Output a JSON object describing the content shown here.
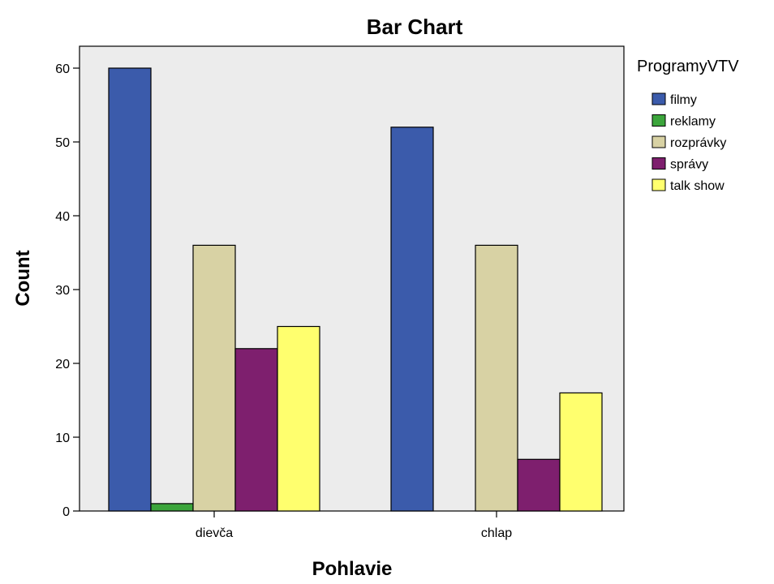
{
  "chart_data": {
    "type": "bar",
    "title": "Bar Chart",
    "xlabel": "Pohlavie",
    "ylabel": "Count",
    "categories": [
      "dievča",
      "chlap"
    ],
    "ylim": [
      0,
      60
    ],
    "yticks": [
      0,
      10,
      20,
      30,
      40,
      50,
      60
    ],
    "legend_title": "ProgramyVTV",
    "legend_position": "right",
    "background_color": "#ececec",
    "series": [
      {
        "name": "filmy",
        "values": [
          60,
          52
        ],
        "color": "#3b5bab"
      },
      {
        "name": "reklamy",
        "values": [
          1,
          0
        ],
        "color": "#3ca53c"
      },
      {
        "name": "rozprávky",
        "values": [
          36,
          36
        ],
        "color": "#d8d2a4"
      },
      {
        "name": "správy",
        "values": [
          22,
          7
        ],
        "color": "#7e1f6e"
      },
      {
        "name": "talk show",
        "values": [
          25,
          16
        ],
        "color": "#ffff6e"
      }
    ]
  }
}
